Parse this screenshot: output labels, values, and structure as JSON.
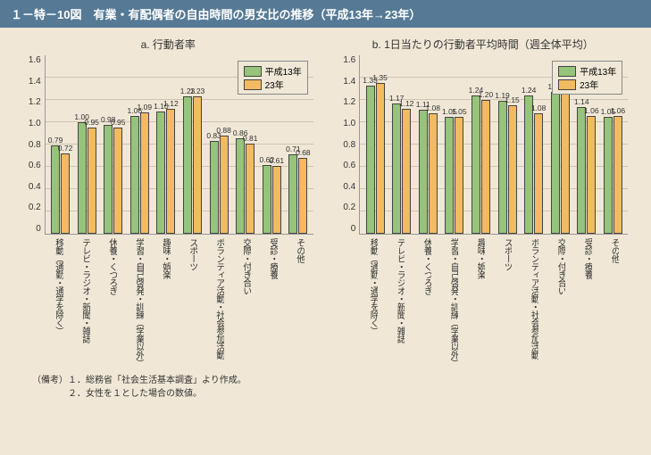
{
  "title": "１－特－10図　有業・有配偶者の自由時間の男女比の推移（平成13年→23年）",
  "legend": {
    "s1": "平成13年",
    "s2": "23年"
  },
  "colors": {
    "s1": "#96c47a",
    "s2": "#f2bb5f",
    "bg": "#f0e7d6",
    "band": "#567a96",
    "grid": "#cfc6b0",
    "border": "#999999",
    "text": "#333333"
  },
  "chart_a": {
    "subtitle": "a. 行動者率",
    "ylim": [
      0,
      1.6
    ],
    "ytick_step": 0.2,
    "yticks": [
      "1.6",
      "1.4",
      "1.2",
      "1.0",
      "0.8",
      "0.6",
      "0.4",
      "0.2",
      "0"
    ],
    "categories": [
      "移動（通勤・通学を除く）",
      "テレビ・ラジオ・新聞・雑誌",
      "休養・くつろぎ",
      "学習・自己啓発・訓練（学業以外）",
      "趣味・娯楽",
      "スポーツ",
      "ボランティア活動・社会参加活動",
      "交際・付き合い",
      "受診・療養",
      "その他"
    ],
    "s1": [
      0.79,
      1.0,
      0.98,
      1.06,
      1.1,
      1.23,
      0.83,
      0.86,
      0.62,
      0.71
    ],
    "s2": [
      0.72,
      0.95,
      0.95,
      1.09,
      1.12,
      1.23,
      0.88,
      0.81,
      0.61,
      0.68
    ]
  },
  "chart_b": {
    "subtitle": "b. 1日当たりの行動者平均時間（週全体平均）",
    "ylim": [
      0,
      1.6
    ],
    "ytick_step": 0.2,
    "yticks": [
      "1.6",
      "1.4",
      "1.2",
      "1.0",
      "0.8",
      "0.6",
      "0.4",
      "0.2",
      "0"
    ],
    "categories": [
      "移動（通勤・通学を除く）",
      "テレビ・ラジオ・新聞・雑誌",
      "休養・くつろぎ",
      "学習・自己啓発・訓練（学業以外）",
      "趣味・娯楽",
      "スポーツ",
      "ボランティア活動・社会参加活動",
      "交際・付き合い",
      "受診・療養",
      "その他"
    ],
    "s1": [
      1.33,
      1.17,
      1.11,
      1.05,
      1.24,
      1.19,
      1.24,
      1.27,
      1.14,
      1.05
    ],
    "s2": [
      1.35,
      1.12,
      1.08,
      1.05,
      1.2,
      1.15,
      1.08,
      1.26,
      1.06,
      1.06
    ]
  },
  "notes": {
    "line1": "（備考）１．総務省「社会生活基本調査」より作成。",
    "line2": "　　　　２．女性を１とした場合の数値。"
  }
}
